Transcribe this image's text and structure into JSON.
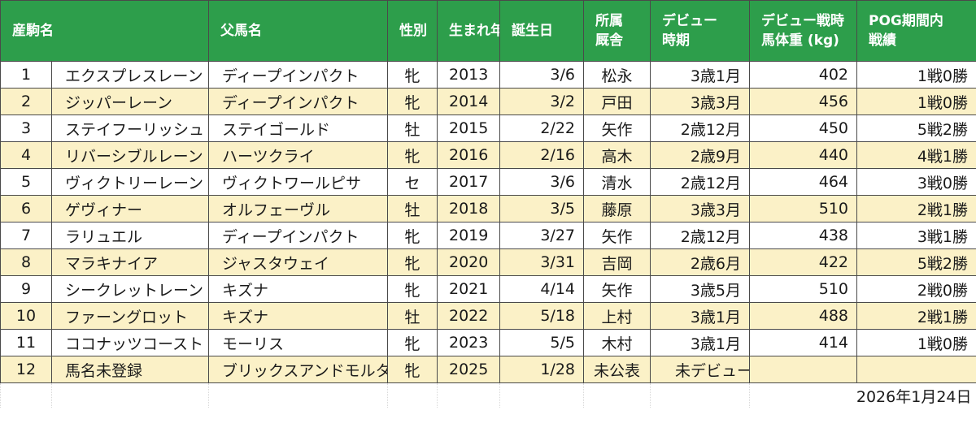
{
  "headers": {
    "horse": "産駒名",
    "sire": "父馬名",
    "sex": "性別",
    "birth_year": "生まれ年",
    "birthday": "誕生日",
    "stable_l1": "所属",
    "stable_l2": "厩舎",
    "debut_l1": "デビュー",
    "debut_l2": "時期",
    "weight_l1": "デビュー戦時",
    "weight_l2": "馬体重 (kg)",
    "record_l1": "POG期間内",
    "record_l2": "戦績"
  },
  "rows": [
    {
      "no": "1",
      "name": "エクスプレスレーン",
      "sire": "ディープインパクト",
      "sex": "牝",
      "year": "2013",
      "birthday": "3/6",
      "stable": "松永",
      "debut": "3歳1月",
      "weight": "402",
      "record": "1戦0勝"
    },
    {
      "no": "2",
      "name": "ジッパーレーン",
      "sire": "ディープインパクト",
      "sex": "牝",
      "year": "2014",
      "birthday": "3/2",
      "stable": "戸田",
      "debut": "3歳3月",
      "weight": "456",
      "record": "1戦0勝"
    },
    {
      "no": "3",
      "name": "ステイフーリッシュ",
      "sire": "ステイゴールド",
      "sex": "牡",
      "year": "2015",
      "birthday": "2/22",
      "stable": "矢作",
      "debut": "2歳12月",
      "weight": "450",
      "record": "5戦2勝"
    },
    {
      "no": "4",
      "name": "リバーシブルレーン",
      "sire": "ハーツクライ",
      "sex": "牝",
      "year": "2016",
      "birthday": "2/16",
      "stable": "高木",
      "debut": "2歳9月",
      "weight": "440",
      "record": "4戦1勝"
    },
    {
      "no": "5",
      "name": "ヴィクトリーレーン",
      "sire": "ヴィクトワールピサ",
      "sex": "セ",
      "year": "2017",
      "birthday": "3/6",
      "stable": "清水",
      "debut": "2歳12月",
      "weight": "464",
      "record": "3戦0勝"
    },
    {
      "no": "6",
      "name": "ゲヴィナー",
      "sire": "オルフェーヴル",
      "sex": "牡",
      "year": "2018",
      "birthday": "3/5",
      "stable": "藤原",
      "debut": "3歳3月",
      "weight": "510",
      "record": "2戦1勝"
    },
    {
      "no": "7",
      "name": "ラリュエル",
      "sire": "ディープインパクト",
      "sex": "牝",
      "year": "2019",
      "birthday": "3/27",
      "stable": "矢作",
      "debut": "2歳12月",
      "weight": "438",
      "record": "3戦1勝"
    },
    {
      "no": "8",
      "name": "マラキナイア",
      "sire": "ジャスタウェイ",
      "sex": "牝",
      "year": "2020",
      "birthday": "3/31",
      "stable": "吉岡",
      "debut": "2歳6月",
      "weight": "422",
      "record": "5戦2勝"
    },
    {
      "no": "9",
      "name": "シークレットレーン",
      "sire": "キズナ",
      "sex": "牝",
      "year": "2021",
      "birthday": "4/14",
      "stable": "矢作",
      "debut": "3歳5月",
      "weight": "510",
      "record": "2戦0勝"
    },
    {
      "no": "10",
      "name": "ファーングロット",
      "sire": "キズナ",
      "sex": "牡",
      "year": "2022",
      "birthday": "5/18",
      "stable": "上村",
      "debut": "3歳1月",
      "weight": "488",
      "record": "2戦1勝"
    },
    {
      "no": "11",
      "name": "ココナッツコースト",
      "sire": "モーリス",
      "sex": "牝",
      "year": "2023",
      "birthday": "5/5",
      "stable": "木村",
      "debut": "3歳1月",
      "weight": "414",
      "record": "1戦0勝"
    },
    {
      "no": "12",
      "name": "馬名未登録",
      "sire": "ブリックスアンドモルタル",
      "sex": "牝",
      "year": "2025",
      "birthday": "1/28",
      "stable": "未公表",
      "debut": "未デビュー",
      "weight": "",
      "record": ""
    }
  ],
  "footer_date": "2026年1月24日",
  "colors": {
    "header_bg": "#2d9e4b",
    "header_text": "#ffffff",
    "stripe": "#fbf1c7",
    "border": "#4a4a4a"
  }
}
